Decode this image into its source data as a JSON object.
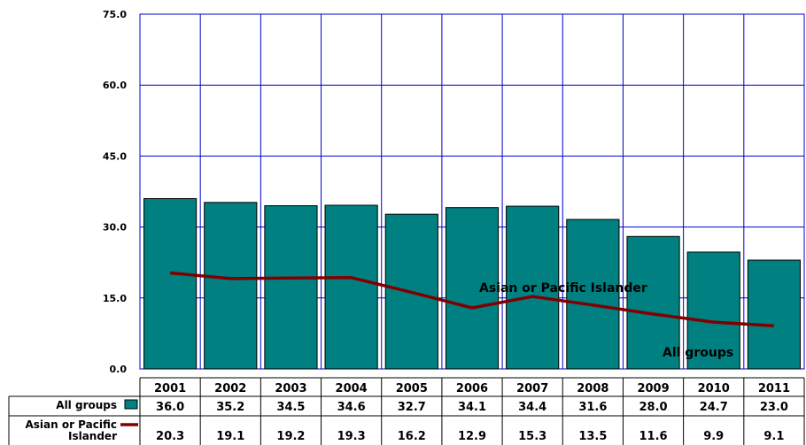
{
  "chart_data": {
    "type": "bar",
    "categories": [
      "2001",
      "2002",
      "2003",
      "2004",
      "2005",
      "2006",
      "2007",
      "2008",
      "2009",
      "2010",
      "2011"
    ],
    "series": [
      {
        "name": "All groups",
        "type": "bar",
        "color": "#008080",
        "values": [
          36.0,
          35.2,
          34.5,
          34.6,
          32.7,
          34.1,
          34.4,
          31.6,
          28.0,
          24.7,
          23.0
        ],
        "table_values": [
          "36.0",
          "35.2",
          "34.5",
          "34.6",
          "32.7",
          "34.1",
          "34.4",
          "31.6",
          "28.0",
          "24.7",
          "23.0"
        ]
      },
      {
        "name": "Asian or Pacific Islander",
        "type": "line",
        "color": "#800000",
        "values": [
          20.3,
          19.1,
          19.2,
          19.3,
          16.2,
          12.9,
          15.3,
          13.5,
          11.6,
          9.9,
          9.1
        ],
        "table_values": [
          "20.3",
          "19.1",
          "19.2",
          "19.3",
          "16.2",
          "12.9",
          "15.3",
          "13.5",
          "11.6",
          "9.9",
          "9.1"
        ]
      }
    ],
    "y_ticks": [
      "0.0",
      "15.0",
      "30.0",
      "45.0",
      "60.0",
      "75.0"
    ],
    "ylim": [
      0,
      75
    ],
    "grid": true,
    "grid_color": "#0000cc",
    "annotations": [
      "Asian or Pacific Islander",
      "All groups"
    ],
    "table": {
      "row_labels": [
        "All groups",
        "Asian or Pacific",
        "Islander"
      ]
    }
  }
}
